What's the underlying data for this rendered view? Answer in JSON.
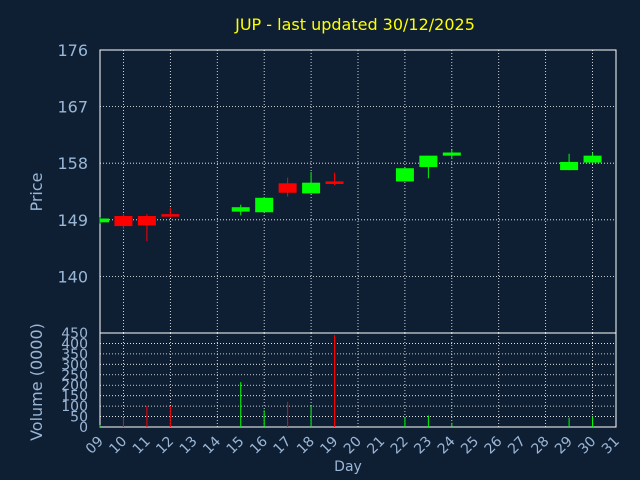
{
  "chart_data": {
    "type": "candlestick",
    "title": "JUP - last updated 30/12/2025",
    "price_panel": {
      "ylabel": "Price",
      "ylim": [
        131,
        176
      ],
      "yticks": [
        "140",
        "149",
        "158",
        "167",
        "176"
      ],
      "grid": true
    },
    "volume_panel": {
      "ylabel": "Volume (0000)",
      "ylim": [
        0,
        450
      ],
      "yticks": [
        "0",
        "50",
        "100",
        "150",
        "200",
        "250",
        "300",
        "350",
        "400",
        "450"
      ],
      "grid": true
    },
    "x": {
      "label": "Day",
      "ticks": [
        "09",
        "10",
        "11",
        "12",
        "13",
        "14",
        "15",
        "16",
        "17",
        "18",
        "19",
        "20",
        "21",
        "22",
        "23",
        "24",
        "25",
        "26",
        "27",
        "28",
        "29",
        "30",
        "31"
      ]
    },
    "candles": [
      {
        "day": "09",
        "open": 148.6,
        "high": 149.4,
        "low": 148.4,
        "close": 149.2,
        "volume": 10
      },
      {
        "day": "10",
        "open": 149.6,
        "high": 149.9,
        "low": 147.6,
        "close": 148.0,
        "volume": 45
      },
      {
        "day": "11",
        "open": 149.6,
        "high": 149.9,
        "low": 145.6,
        "close": 148.1,
        "volume": 100
      },
      {
        "day": "12",
        "open": 149.9,
        "high": 150.9,
        "low": 149.4,
        "close": 149.5,
        "volume": 100
      },
      {
        "day": "15",
        "open": 150.3,
        "high": 151.4,
        "low": 149.7,
        "close": 151.0,
        "volume": 215
      },
      {
        "day": "16",
        "open": 150.2,
        "high": 152.6,
        "low": 150.2,
        "close": 152.5,
        "volume": 80
      },
      {
        "day": "17",
        "open": 154.8,
        "high": 155.7,
        "low": 152.7,
        "close": 153.3,
        "volume": 120
      },
      {
        "day": "18",
        "open": 153.2,
        "high": 156.6,
        "low": 153.2,
        "close": 154.9,
        "volume": 100
      },
      {
        "day": "19",
        "open": 155.1,
        "high": 156.5,
        "low": 154.5,
        "close": 154.7,
        "volume": 440
      },
      {
        "day": "22",
        "open": 155.1,
        "high": 157.2,
        "low": 155.1,
        "close": 157.2,
        "volume": 45
      },
      {
        "day": "23",
        "open": 157.4,
        "high": 159.2,
        "low": 155.6,
        "close": 159.2,
        "volume": 55
      },
      {
        "day": "24",
        "open": 159.2,
        "high": 160.1,
        "low": 158.7,
        "close": 159.7,
        "volume": 20
      },
      {
        "day": "29",
        "open": 156.9,
        "high": 159.5,
        "low": 156.9,
        "close": 158.2,
        "volume": 45
      },
      {
        "day": "30",
        "open": 158.1,
        "high": 159.7,
        "low": 158.1,
        "close": 159.2,
        "volume": 50
      }
    ],
    "colors": {
      "up": "#00ff00",
      "down": "#ff0000",
      "background": "#0f1f33",
      "text": "#9bb7d6",
      "title": "#ffff00",
      "grid": "#ffffff"
    }
  }
}
